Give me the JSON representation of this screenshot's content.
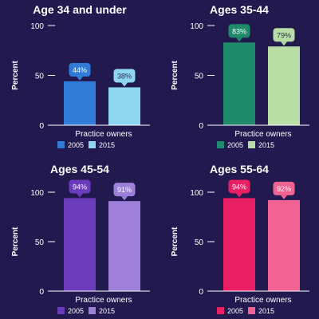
{
  "chart_data": [
    {
      "type": "bar",
      "title": "Age 34 and under",
      "categories": [
        "Practice owners"
      ],
      "ylabel": "Percent",
      "ylim": [
        0,
        100
      ],
      "yticks": [
        0,
        50,
        100
      ],
      "series": [
        {
          "name": "2005",
          "values": [
            44
          ],
          "color": "#2f7bd6",
          "label_color": "#ffffff"
        },
        {
          "name": "2015",
          "values": [
            38
          ],
          "color": "#8fd6ef",
          "label_color": "#2a2a4a"
        }
      ],
      "data_labels": [
        [
          "44%"
        ],
        [
          "38%"
        ]
      ]
    },
    {
      "type": "bar",
      "title": "Ages 35-44",
      "categories": [
        "Practice owners"
      ],
      "ylabel": "Percent",
      "ylim": [
        0,
        100
      ],
      "yticks": [
        0,
        50,
        100
      ],
      "series": [
        {
          "name": "2005",
          "values": [
            83
          ],
          "color": "#1f8a6a",
          "label_color": "#ffffff"
        },
        {
          "name": "2015",
          "values": [
            79
          ],
          "color": "#b9dea5",
          "label_color": "#2a2a4a"
        }
      ],
      "data_labels": [
        [
          "83%"
        ],
        [
          "79%"
        ]
      ]
    },
    {
      "type": "bar",
      "title": "Ages 45-54",
      "categories": [
        "Practice owners"
      ],
      "ylabel": "Percent",
      "ylim": [
        0,
        100
      ],
      "yticks": [
        0,
        50,
        100
      ],
      "series": [
        {
          "name": "2005",
          "values": [
            94
          ],
          "color": "#6a3bbb",
          "label_color": "#ffffff"
        },
        {
          "name": "2015",
          "values": [
            91
          ],
          "color": "#9d7ed8",
          "label_color": "#ffffff"
        }
      ],
      "data_labels": [
        [
          "94%"
        ],
        [
          "91%"
        ]
      ]
    },
    {
      "type": "bar",
      "title": "Ages 55-64",
      "categories": [
        "Practice owners"
      ],
      "ylabel": "Percent",
      "ylim": [
        0,
        100
      ],
      "yticks": [
        0,
        50,
        100
      ],
      "series": [
        {
          "name": "2005",
          "values": [
            94
          ],
          "color": "#e91e63",
          "label_color": "#ffffff"
        },
        {
          "name": "2015",
          "values": [
            92
          ],
          "color": "#f06292",
          "label_color": "#ffffff"
        }
      ],
      "data_labels": [
        [
          "94%"
        ],
        [
          "92%"
        ]
      ]
    }
  ]
}
